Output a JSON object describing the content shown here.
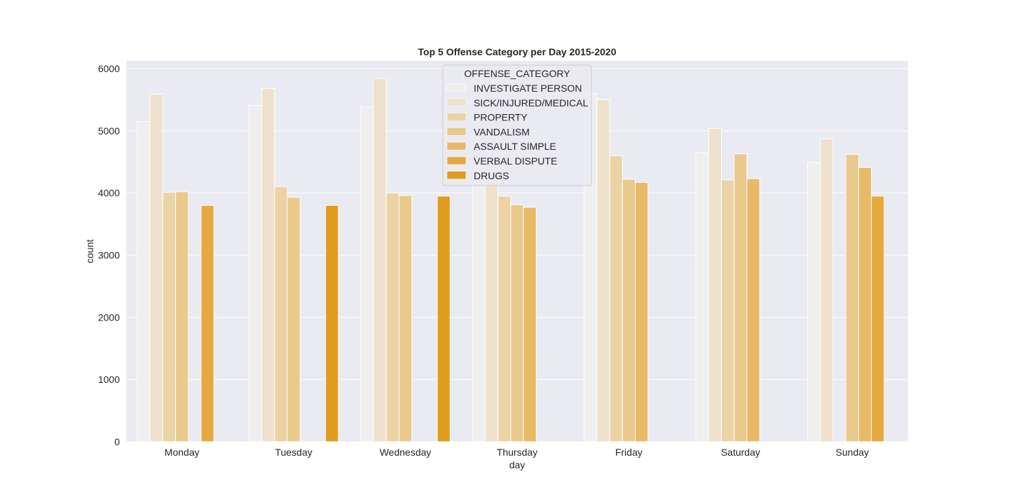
{
  "chart_data": {
    "type": "bar",
    "title": "Top 5 Offense Category per Day 2015-2020",
    "xlabel": "day",
    "ylabel": "count",
    "ylim": [
      0,
      6000
    ],
    "yticks": [
      0,
      1000,
      2000,
      3000,
      4000,
      5000,
      6000
    ],
    "grid": true,
    "legend_title": "OFFENSE_CATEGORY",
    "legend_position": "top-center",
    "categories": [
      "Monday",
      "Tuesday",
      "Wednesday",
      "Thursday",
      "Friday",
      "Saturday",
      "Sunday"
    ],
    "series": [
      {
        "name": "INVESTIGATE PERSON",
        "color": "#f0eeee",
        "values": [
          5150,
          5410,
          5390,
          4180,
          5600,
          4650,
          4490
        ]
      },
      {
        "name": "SICK/INJURED/MEDICAL",
        "color": "#eee1cd",
        "values": [
          5590,
          5680,
          5840,
          4200,
          5500,
          5040,
          4870
        ]
      },
      {
        "name": "PROPERTY",
        "color": "#ecd3a6",
        "values": [
          4010,
          4100,
          4000,
          3950,
          4600,
          4210,
          null
        ]
      },
      {
        "name": "VANDALISM",
        "color": "#eac98c",
        "values": [
          4020,
          3930,
          3960,
          3810,
          4220,
          4630,
          4620
        ]
      },
      {
        "name": "ASSAULT SIMPLE",
        "color": "#e8ba67",
        "values": [
          null,
          null,
          null,
          3770,
          4170,
          4230,
          4410
        ]
      },
      {
        "name": "VERBAL DISPUTE",
        "color": "#e4aa3f",
        "values": [
          3800,
          null,
          null,
          null,
          null,
          null,
          3950
        ]
      },
      {
        "name": "DRUGS",
        "color": "#e09c1c",
        "values": [
          null,
          3800,
          3950,
          null,
          null,
          null,
          null
        ]
      }
    ],
    "colors": {
      "plot_background": "#eaeaf2",
      "grid": "#ffffff",
      "text": "#262626"
    }
  }
}
